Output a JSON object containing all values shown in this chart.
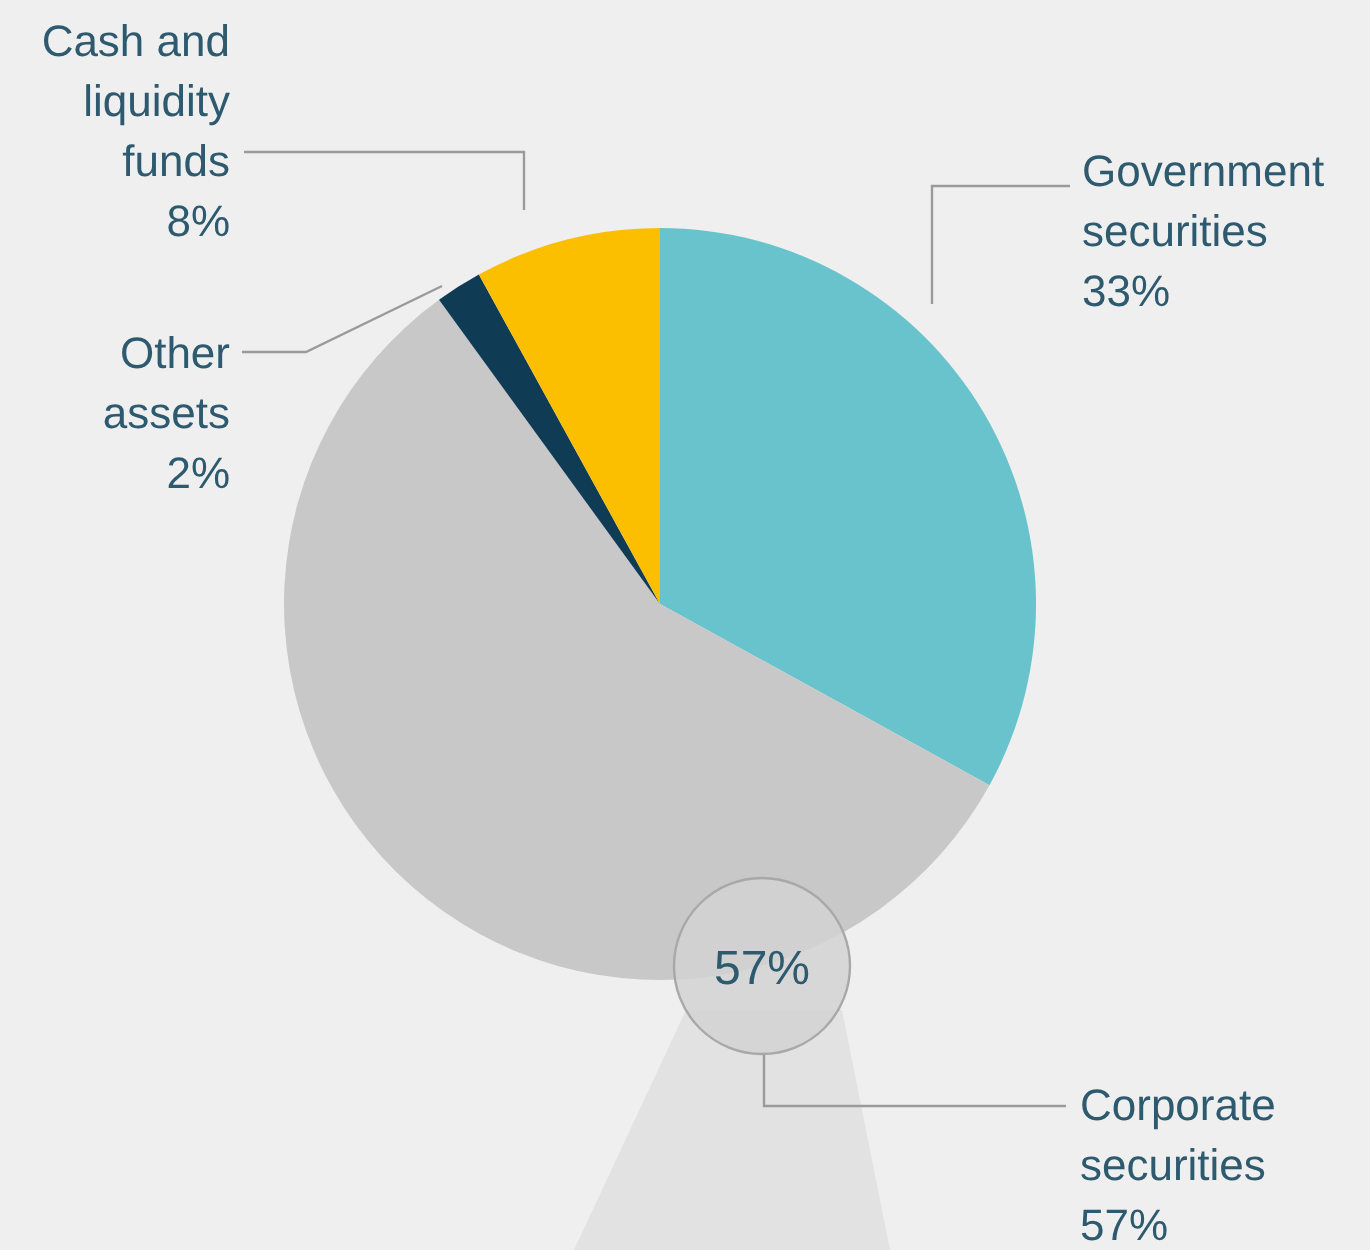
{
  "chart_data": {
    "type": "pie",
    "categories": [
      "Government securities",
      "Corporate securities",
      "Other assets",
      "Cash and liquidity funds"
    ],
    "values": [
      33,
      57,
      2,
      8
    ],
    "colors": [
      "#69c3cc",
      "#c8c8c8",
      "#0f3b55",
      "#fbbf00"
    ],
    "value_labels": [
      "33%",
      "57%",
      "2%",
      "8%"
    ],
    "annotations": [
      "57%"
    ]
  }
}
